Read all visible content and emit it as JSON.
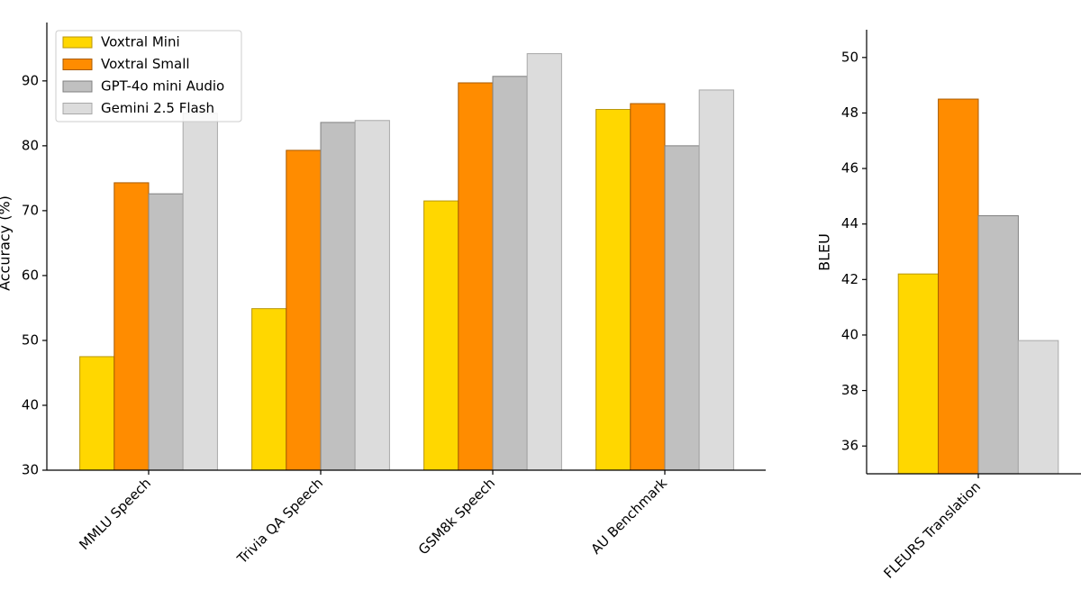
{
  "chart_data": [
    {
      "type": "bar",
      "y_label": "Accuracy (%)",
      "categories": [
        "MMLU Speech",
        "Trivia QA Speech",
        "GSM8k Speech",
        "AU Benchmark"
      ],
      "series": [
        {
          "name": "Voxtral Mini",
          "color": "#FFD700",
          "values": [
            47.5,
            54.9,
            71.5,
            85.6
          ]
        },
        {
          "name": "Voxtral Small",
          "color": "#FF8C00",
          "values": [
            74.3,
            79.3,
            89.7,
            86.5
          ]
        },
        {
          "name": "GPT-4o mini Audio",
          "color": "#C0C0C0",
          "values": [
            72.6,
            83.6,
            90.7,
            80.0
          ]
        },
        {
          "name": "Gemini 2.5 Flash",
          "color": "#DCDCDC",
          "values": [
            85.0,
            83.9,
            94.2,
            88.6
          ]
        }
      ],
      "ylim": [
        30,
        99
      ],
      "yticks": [
        30,
        40,
        50,
        60,
        70,
        80,
        90
      ],
      "grid": false,
      "legend": "upper left"
    },
    {
      "type": "bar",
      "y_label": "BLEU",
      "categories": [
        "FLEURS Translation"
      ],
      "series": [
        {
          "color": "#FFD700",
          "values": [
            42.2
          ]
        },
        {
          "color": "#FF8C00",
          "values": [
            48.5
          ]
        },
        {
          "color": "#C0C0C0",
          "values": [
            44.3
          ]
        },
        {
          "color": "#DCDCDC",
          "values": [
            39.8
          ]
        }
      ],
      "ylim": [
        35,
        51
      ],
      "yticks": [
        36,
        38,
        40,
        42,
        44,
        46,
        48,
        50
      ],
      "grid": false
    }
  ]
}
